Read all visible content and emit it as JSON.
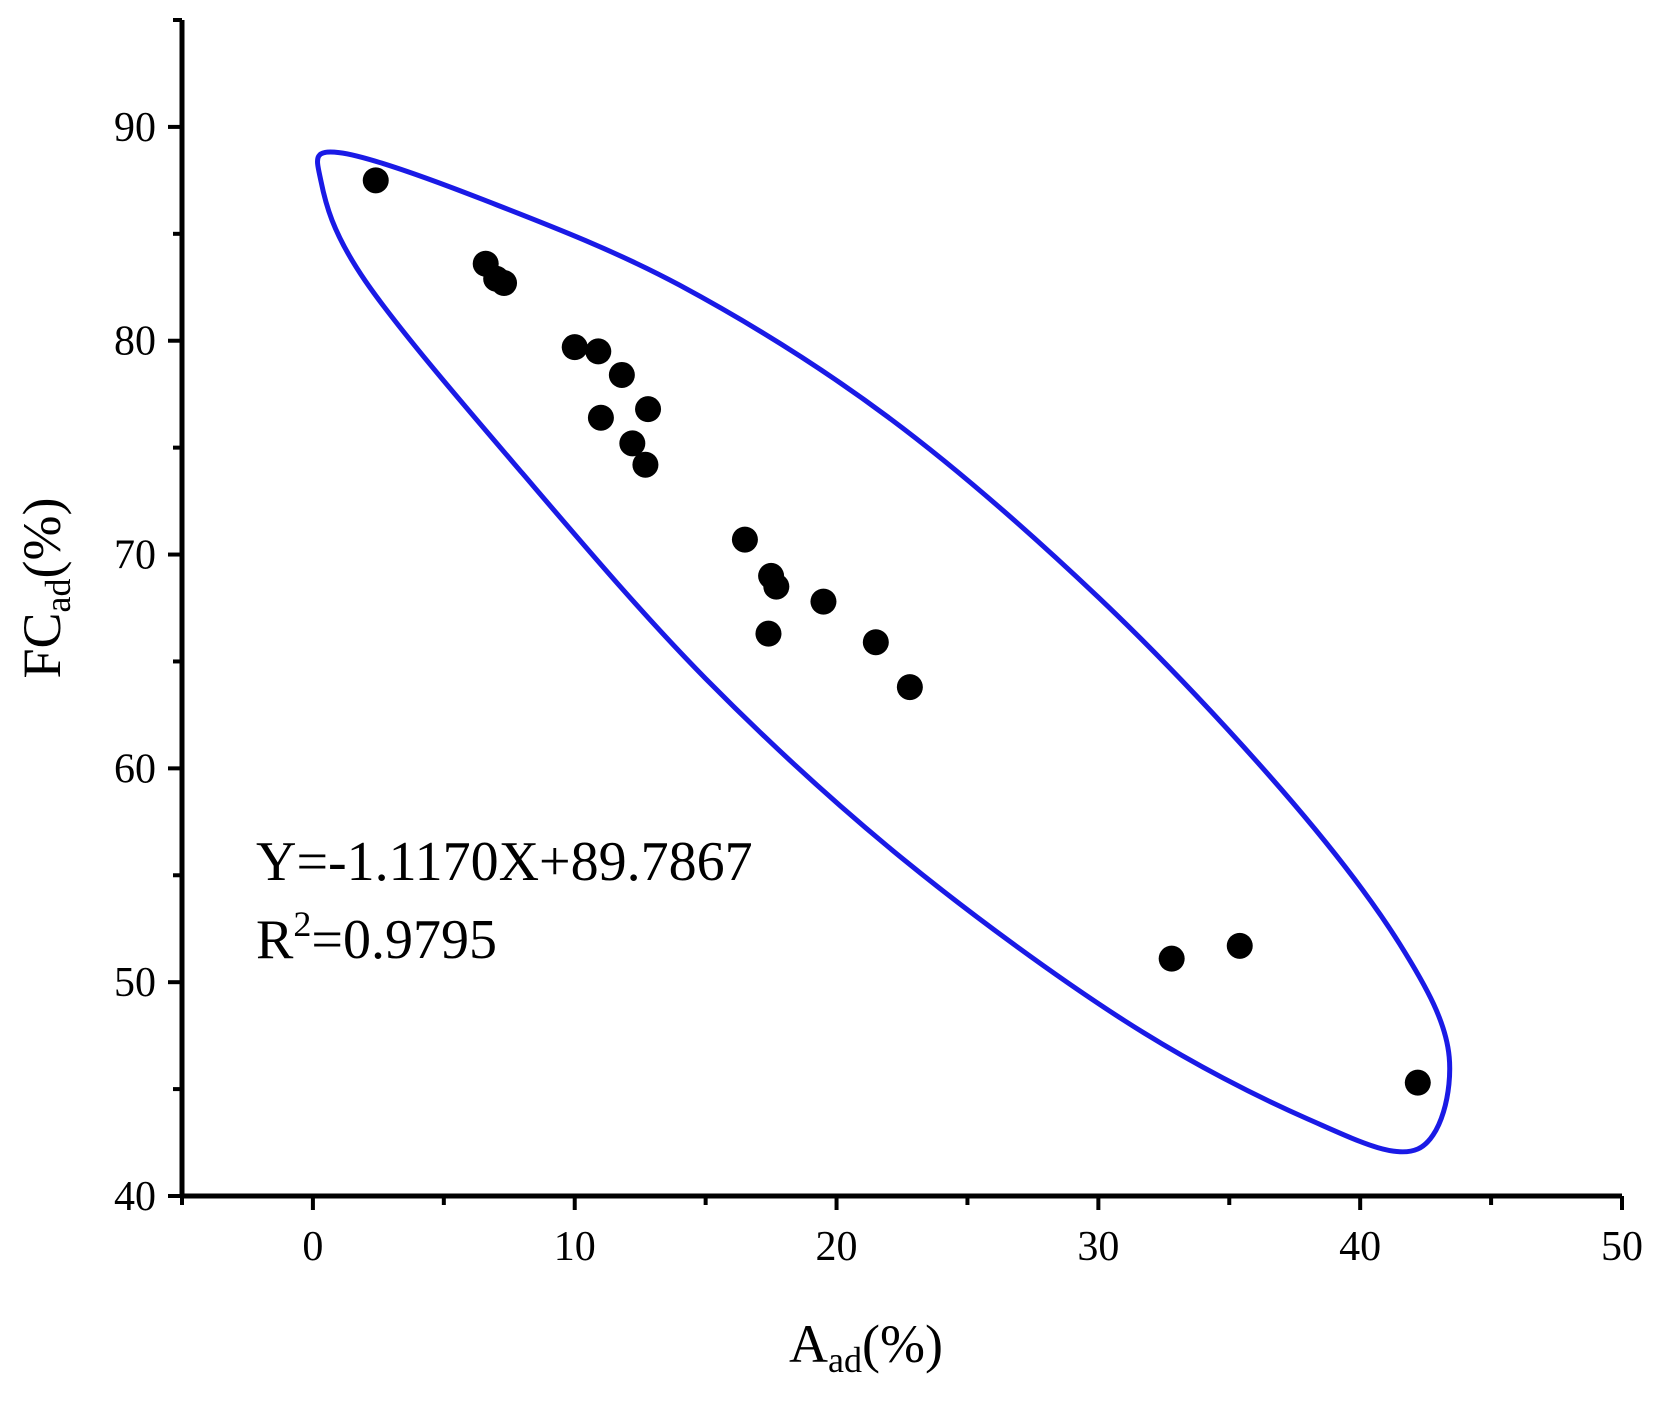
{
  "chart_data": {
    "type": "scatter",
    "xlim": [
      -5,
      50
    ],
    "ylim": [
      40,
      95
    ],
    "x_ticks": [
      0,
      10,
      20,
      30,
      40,
      50
    ],
    "y_ticks": [
      40,
      50,
      60,
      70,
      80,
      90
    ],
    "x_tick_labels": [
      "0",
      "10",
      "20",
      "30",
      "40",
      "50"
    ],
    "y_tick_labels": [
      "40",
      "50",
      "60",
      "70",
      "80",
      "90"
    ],
    "x_minor_ticks": [
      -5,
      5,
      15,
      25,
      35,
      45
    ],
    "y_minor_ticks": [
      45,
      55,
      65,
      75,
      85,
      95
    ],
    "xlabel": {
      "main": "A",
      "sub": "ad",
      "suffix": "(%)"
    },
    "ylabel": {
      "main": "FC",
      "sub": "ad",
      "suffix": "(%)"
    },
    "grid": false,
    "marker_color": "#000000",
    "ellipse_color": "#1a1ae6",
    "annotation": {
      "equation": "Y=-1.1170X+89.7867",
      "r2_prefix": "R",
      "r2_sup": "2",
      "r2_value": "=0.9795"
    },
    "points": [
      {
        "x": 2.4,
        "y": 87.5
      },
      {
        "x": 6.6,
        "y": 83.6
      },
      {
        "x": 7.0,
        "y": 82.9
      },
      {
        "x": 7.3,
        "y": 82.7
      },
      {
        "x": 10.0,
        "y": 79.7
      },
      {
        "x": 10.9,
        "y": 79.5
      },
      {
        "x": 11.8,
        "y": 78.4
      },
      {
        "x": 12.8,
        "y": 76.8
      },
      {
        "x": 11.0,
        "y": 76.4
      },
      {
        "x": 12.2,
        "y": 75.2
      },
      {
        "x": 12.7,
        "y": 74.2
      },
      {
        "x": 16.5,
        "y": 70.7
      },
      {
        "x": 17.5,
        "y": 69.0
      },
      {
        "x": 17.7,
        "y": 68.5
      },
      {
        "x": 19.5,
        "y": 67.8
      },
      {
        "x": 17.4,
        "y": 66.3
      },
      {
        "x": 21.5,
        "y": 65.9
      },
      {
        "x": 22.8,
        "y": 63.8
      },
      {
        "x": 32.8,
        "y": 51.1
      },
      {
        "x": 35.4,
        "y": 51.7
      },
      {
        "x": 42.2,
        "y": 45.3
      }
    ]
  }
}
